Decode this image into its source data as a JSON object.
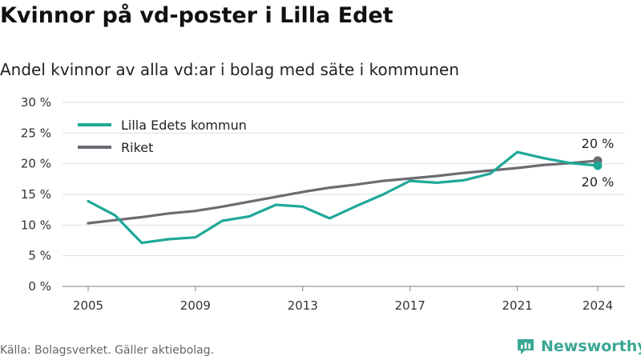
{
  "title": "Kvinnor på vd-poster i Lilla Edet",
  "subtitle": "Andel kvinnor av alla vd:ar i bolag med säte i kommunen",
  "source": "Källa: Bolagsverket. Gäller aktiebolag.",
  "brand": {
    "name": "Newsworthy",
    "icon": "newsworthy-logo-icon",
    "color": "#3aa794"
  },
  "chart_data": {
    "type": "line",
    "x": [
      2005,
      2006,
      2007,
      2008,
      2009,
      2010,
      2011,
      2012,
      2013,
      2014,
      2015,
      2016,
      2017,
      2018,
      2019,
      2020,
      2021,
      2022,
      2023,
      2024
    ],
    "series": [
      {
        "name": "Lilla Edets kommun",
        "color": "#1fa898",
        "values": [
          13.9,
          11.6,
          7.1,
          7.7,
          8.0,
          10.7,
          11.4,
          13.3,
          13.0,
          11.1,
          13.1,
          15.0,
          17.2,
          16.9,
          17.3,
          18.4,
          21.9,
          20.9,
          20.1,
          19.7
        ],
        "end_label": "20 %"
      },
      {
        "name": "Riket",
        "color": "#6e6a72",
        "values": [
          10.3,
          10.8,
          11.3,
          11.9,
          12.3,
          13.0,
          13.8,
          14.6,
          15.4,
          16.1,
          16.6,
          17.2,
          17.6,
          18.0,
          18.5,
          18.9,
          19.3,
          19.8,
          20.1,
          20.5
        ],
        "end_label": "20 %"
      }
    ],
    "y_ticks": [
      "0 %",
      "5 %",
      "10 %",
      "15 %",
      "20 %",
      "25 %",
      "30 %"
    ],
    "x_ticks": [
      "2005",
      "2009",
      "2013",
      "2017",
      "2021",
      "2024"
    ],
    "ylim": [
      0,
      30
    ],
    "grid": true,
    "legend_position": "top-left"
  }
}
